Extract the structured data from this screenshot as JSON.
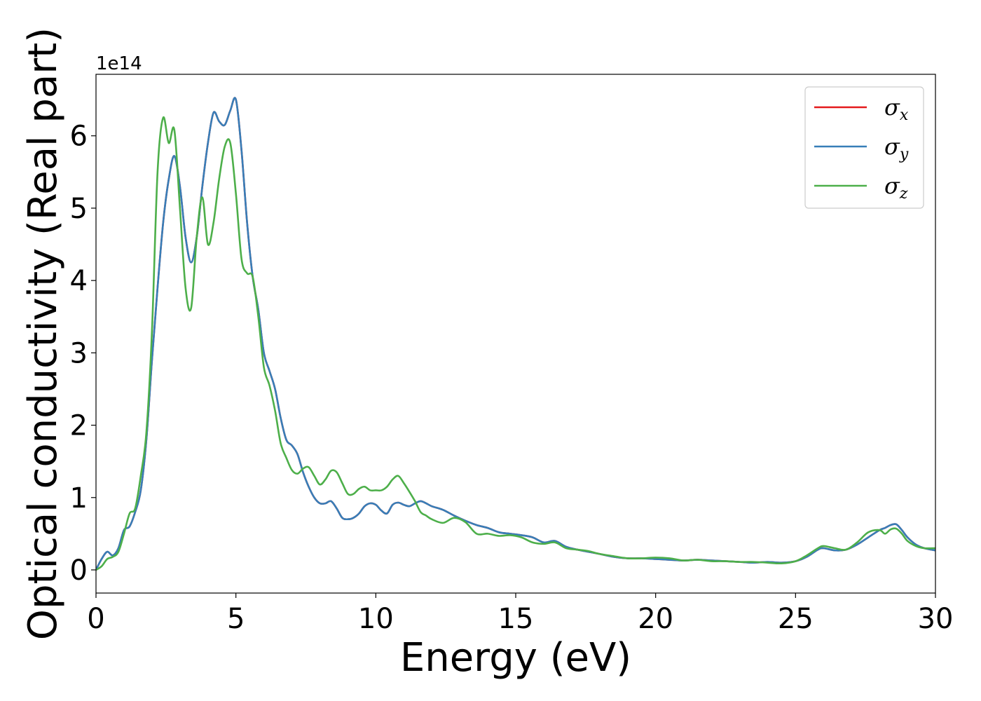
{
  "chart_data": {
    "type": "line",
    "xlabel": "Energy (eV)",
    "ylabel": "Optical conductivity (Real part)",
    "y_offset_text": "1e14",
    "y_scale_factor": 100000000000000.0,
    "xlim": [
      0,
      30
    ],
    "ylim": [
      -0.32,
      6.85
    ],
    "x_ticks": [
      0,
      5,
      10,
      15,
      20,
      25,
      30
    ],
    "x_tick_labels": [
      "0",
      "5",
      "10",
      "15",
      "20",
      "25",
      "30"
    ],
    "y_ticks": [
      0,
      1,
      2,
      3,
      4,
      5,
      6
    ],
    "y_tick_labels": [
      "0",
      "1",
      "2",
      "3",
      "4",
      "5",
      "6"
    ],
    "grid": false,
    "legend_position": "top-right",
    "series": [
      {
        "name": "σx",
        "label_base": "σ",
        "label_sub": "x",
        "color": "#e41a1c",
        "x": [
          0,
          0.2,
          0.4,
          0.6,
          0.8,
          1.0,
          1.2,
          1.4,
          1.6,
          1.8,
          2.0,
          2.2,
          2.4,
          2.6,
          2.8,
          3.0,
          3.2,
          3.4,
          3.6,
          3.8,
          4.0,
          4.2,
          4.4,
          4.6,
          4.8,
          5.0,
          5.2,
          5.4,
          5.6,
          5.8,
          6.0,
          6.2,
          6.4,
          6.6,
          6.8,
          7.0,
          7.2,
          7.4,
          7.6,
          7.8,
          8.0,
          8.2,
          8.4,
          8.6,
          8.8,
          9.0,
          9.2,
          9.4,
          9.6,
          9.8,
          10.0,
          10.2,
          10.4,
          10.6,
          10.8,
          11.0,
          11.2,
          11.4,
          11.6,
          11.8,
          12.0,
          12.4,
          12.8,
          13.2,
          13.6,
          14.0,
          14.4,
          14.8,
          15.2,
          15.6,
          16.0,
          16.4,
          16.8,
          17.2,
          17.6,
          18.0,
          18.5,
          19.0,
          19.5,
          20.0,
          20.5,
          21.0,
          21.5,
          22.0,
          22.5,
          23.0,
          23.5,
          24.0,
          24.5,
          25.0,
          25.4,
          25.8,
          26.0,
          26.4,
          26.8,
          27.2,
          27.6,
          28.0,
          28.2,
          28.4,
          28.6,
          28.8,
          29.0,
          29.3,
          29.6,
          30.0
        ],
        "y": [
          0.0,
          0.15,
          0.25,
          0.2,
          0.3,
          0.55,
          0.6,
          0.8,
          1.1,
          1.8,
          2.9,
          3.9,
          4.8,
          5.4,
          5.72,
          5.3,
          4.6,
          4.25,
          4.6,
          5.3,
          5.9,
          6.32,
          6.2,
          6.15,
          6.35,
          6.5,
          5.8,
          4.8,
          4.05,
          3.6,
          3.0,
          2.75,
          2.5,
          2.1,
          1.8,
          1.72,
          1.6,
          1.35,
          1.15,
          1.0,
          0.92,
          0.92,
          0.95,
          0.85,
          0.72,
          0.7,
          0.72,
          0.78,
          0.88,
          0.92,
          0.9,
          0.82,
          0.78,
          0.9,
          0.93,
          0.9,
          0.88,
          0.92,
          0.95,
          0.92,
          0.88,
          0.83,
          0.75,
          0.68,
          0.62,
          0.58,
          0.52,
          0.5,
          0.48,
          0.45,
          0.38,
          0.4,
          0.32,
          0.28,
          0.25,
          0.22,
          0.18,
          0.16,
          0.16,
          0.15,
          0.14,
          0.13,
          0.14,
          0.13,
          0.12,
          0.11,
          0.1,
          0.11,
          0.1,
          0.12,
          0.18,
          0.28,
          0.3,
          0.27,
          0.28,
          0.35,
          0.45,
          0.55,
          0.58,
          0.62,
          0.63,
          0.55,
          0.45,
          0.35,
          0.3,
          0.27
        ]
      },
      {
        "name": "σy",
        "label_base": "σ",
        "label_sub": "y",
        "color": "#377eb8",
        "x": [
          0,
          0.2,
          0.4,
          0.6,
          0.8,
          1.0,
          1.2,
          1.4,
          1.6,
          1.8,
          2.0,
          2.2,
          2.4,
          2.6,
          2.8,
          3.0,
          3.2,
          3.4,
          3.6,
          3.8,
          4.0,
          4.2,
          4.4,
          4.6,
          4.8,
          5.0,
          5.2,
          5.4,
          5.6,
          5.8,
          6.0,
          6.2,
          6.4,
          6.6,
          6.8,
          7.0,
          7.2,
          7.4,
          7.6,
          7.8,
          8.0,
          8.2,
          8.4,
          8.6,
          8.8,
          9.0,
          9.2,
          9.4,
          9.6,
          9.8,
          10.0,
          10.2,
          10.4,
          10.6,
          10.8,
          11.0,
          11.2,
          11.4,
          11.6,
          11.8,
          12.0,
          12.4,
          12.8,
          13.2,
          13.6,
          14.0,
          14.4,
          14.8,
          15.2,
          15.6,
          16.0,
          16.4,
          16.8,
          17.2,
          17.6,
          18.0,
          18.5,
          19.0,
          19.5,
          20.0,
          20.5,
          21.0,
          21.5,
          22.0,
          22.5,
          23.0,
          23.5,
          24.0,
          24.5,
          25.0,
          25.4,
          25.8,
          26.0,
          26.4,
          26.8,
          27.2,
          27.6,
          28.0,
          28.2,
          28.4,
          28.6,
          28.8,
          29.0,
          29.3,
          29.6,
          30.0
        ],
        "y": [
          0.0,
          0.15,
          0.25,
          0.2,
          0.3,
          0.55,
          0.6,
          0.8,
          1.1,
          1.8,
          2.9,
          3.9,
          4.8,
          5.4,
          5.72,
          5.3,
          4.6,
          4.25,
          4.6,
          5.3,
          5.9,
          6.32,
          6.2,
          6.15,
          6.35,
          6.5,
          5.8,
          4.8,
          4.05,
          3.6,
          3.0,
          2.75,
          2.5,
          2.1,
          1.8,
          1.72,
          1.6,
          1.35,
          1.15,
          1.0,
          0.92,
          0.92,
          0.95,
          0.85,
          0.72,
          0.7,
          0.72,
          0.78,
          0.88,
          0.92,
          0.9,
          0.82,
          0.78,
          0.9,
          0.93,
          0.9,
          0.88,
          0.92,
          0.95,
          0.92,
          0.88,
          0.83,
          0.75,
          0.68,
          0.62,
          0.58,
          0.52,
          0.5,
          0.48,
          0.45,
          0.38,
          0.4,
          0.32,
          0.28,
          0.25,
          0.22,
          0.18,
          0.16,
          0.16,
          0.15,
          0.14,
          0.13,
          0.14,
          0.13,
          0.12,
          0.11,
          0.1,
          0.11,
          0.1,
          0.12,
          0.18,
          0.28,
          0.3,
          0.27,
          0.28,
          0.35,
          0.45,
          0.55,
          0.58,
          0.62,
          0.63,
          0.55,
          0.45,
          0.35,
          0.3,
          0.27
        ]
      },
      {
        "name": "σz",
        "label_base": "σ",
        "label_sub": "z",
        "color": "#4daf4a",
        "x": [
          0,
          0.2,
          0.4,
          0.6,
          0.8,
          1.0,
          1.2,
          1.4,
          1.6,
          1.8,
          2.0,
          2.2,
          2.4,
          2.6,
          2.8,
          3.0,
          3.2,
          3.4,
          3.6,
          3.8,
          4.0,
          4.2,
          4.4,
          4.6,
          4.8,
          5.0,
          5.2,
          5.4,
          5.6,
          5.8,
          6.0,
          6.2,
          6.4,
          6.6,
          6.8,
          7.0,
          7.2,
          7.4,
          7.6,
          7.8,
          8.0,
          8.2,
          8.4,
          8.6,
          8.8,
          9.0,
          9.2,
          9.4,
          9.6,
          9.8,
          10.0,
          10.2,
          10.4,
          10.6,
          10.8,
          11.0,
          11.2,
          11.4,
          11.6,
          11.8,
          12.0,
          12.4,
          12.8,
          13.2,
          13.6,
          14.0,
          14.4,
          14.8,
          15.2,
          15.6,
          16.0,
          16.4,
          16.8,
          17.2,
          17.6,
          18.0,
          18.5,
          19.0,
          19.5,
          20.0,
          20.5,
          21.0,
          21.5,
          22.0,
          22.5,
          23.0,
          23.5,
          24.0,
          24.5,
          25.0,
          25.4,
          25.8,
          26.0,
          26.4,
          26.8,
          27.2,
          27.6,
          28.0,
          28.2,
          28.4,
          28.6,
          28.8,
          29.0,
          29.3,
          29.6,
          30.0
        ],
        "y": [
          0.0,
          0.05,
          0.15,
          0.18,
          0.25,
          0.5,
          0.78,
          0.85,
          1.3,
          1.9,
          3.3,
          5.5,
          6.25,
          5.9,
          6.08,
          5.0,
          3.9,
          3.62,
          4.6,
          5.15,
          4.5,
          4.8,
          5.4,
          5.85,
          5.9,
          5.2,
          4.3,
          4.1,
          4.05,
          3.5,
          2.8,
          2.55,
          2.2,
          1.75,
          1.55,
          1.38,
          1.33,
          1.4,
          1.42,
          1.3,
          1.18,
          1.25,
          1.37,
          1.35,
          1.2,
          1.05,
          1.05,
          1.12,
          1.15,
          1.1,
          1.1,
          1.1,
          1.15,
          1.25,
          1.3,
          1.2,
          1.08,
          0.95,
          0.8,
          0.75,
          0.7,
          0.65,
          0.72,
          0.66,
          0.5,
          0.5,
          0.47,
          0.48,
          0.45,
          0.38,
          0.36,
          0.38,
          0.3,
          0.28,
          0.26,
          0.22,
          0.19,
          0.16,
          0.16,
          0.17,
          0.16,
          0.13,
          0.14,
          0.12,
          0.12,
          0.11,
          0.11,
          0.1,
          0.09,
          0.12,
          0.2,
          0.3,
          0.33,
          0.3,
          0.28,
          0.38,
          0.52,
          0.55,
          0.5,
          0.56,
          0.57,
          0.5,
          0.4,
          0.33,
          0.3,
          0.3
        ]
      }
    ]
  }
}
